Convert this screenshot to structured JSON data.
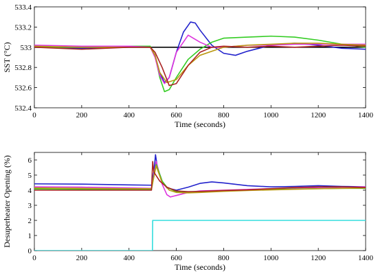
{
  "chart_data": [
    {
      "type": "line",
      "xlabel": "Time (seconds)",
      "ylabel": "SST (°C)",
      "xlim": [
        0,
        1400
      ],
      "ylim": [
        532.4,
        533.4
      ],
      "xticks": [
        "0",
        "200",
        "400",
        "600",
        "800",
        "1000",
        "1200",
        "1400"
      ],
      "yticks": [
        "532.4",
        "532.6",
        "532.8",
        "533",
        "533.2",
        "533.4"
      ],
      "grid": false,
      "series": [
        {
          "color": "#000000",
          "x": [
            0,
            1400
          ],
          "y": [
            533.0,
            533.0
          ]
        },
        {
          "color": "#2222cc",
          "x": [
            0,
            200,
            400,
            490,
            510,
            530,
            550,
            570,
            600,
            630,
            660,
            680,
            700,
            750,
            800,
            850,
            900,
            1000,
            1100,
            1200,
            1300,
            1400
          ],
          "y": [
            533.0,
            532.99,
            533.0,
            533.0,
            532.92,
            532.75,
            532.65,
            532.7,
            532.95,
            533.15,
            533.25,
            533.24,
            533.17,
            533.02,
            532.94,
            532.92,
            532.96,
            533.02,
            533.04,
            533.02,
            532.99,
            532.98
          ]
        },
        {
          "color": "#33cc22",
          "x": [
            0,
            200,
            400,
            490,
            510,
            530,
            550,
            570,
            600,
            650,
            700,
            750,
            800,
            900,
            1000,
            1100,
            1200,
            1300,
            1400
          ],
          "y": [
            533.0,
            533.0,
            533.01,
            533.01,
            532.92,
            532.7,
            532.56,
            532.58,
            532.7,
            532.88,
            532.98,
            533.05,
            533.09,
            533.1,
            533.11,
            533.1,
            533.07,
            533.03,
            533.0
          ]
        },
        {
          "color": "#dd33dd",
          "x": [
            0,
            200,
            400,
            490,
            510,
            530,
            550,
            570,
            600,
            650,
            700,
            750,
            800,
            900,
            1000,
            1100,
            1200,
            1300,
            1400
          ],
          "y": [
            533.02,
            533.01,
            533.01,
            533.0,
            532.9,
            532.72,
            532.64,
            532.7,
            532.95,
            533.12,
            533.05,
            533.0,
            533.0,
            533.02,
            533.02,
            533.03,
            533.03,
            533.03,
            533.03
          ]
        },
        {
          "color": "#bb9911",
          "x": [
            0,
            200,
            400,
            490,
            510,
            530,
            560,
            600,
            650,
            700,
            800,
            900,
            1000,
            1100,
            1200,
            1300,
            1400
          ],
          "y": [
            533.01,
            533.0,
            533.0,
            533.0,
            532.92,
            532.75,
            532.65,
            532.68,
            532.82,
            532.92,
            533.0,
            533.02,
            533.03,
            533.04,
            533.04,
            533.03,
            533.02
          ]
        },
        {
          "color": "#aa2222",
          "x": [
            0,
            200,
            400,
            490,
            510,
            540,
            570,
            600,
            650,
            700,
            750,
            800,
            900,
            1000,
            1100,
            1200,
            1300,
            1400
          ],
          "y": [
            533.0,
            532.98,
            533.0,
            533.0,
            532.95,
            532.8,
            532.62,
            532.64,
            532.82,
            532.95,
            533.0,
            533.01,
            533.0,
            533.01,
            533.0,
            533.01,
            533.02,
            533.01
          ]
        }
      ]
    },
    {
      "type": "line",
      "xlabel": "Time (seconds)",
      "ylabel": "Desuperheater Opening (%)",
      "xlim": [
        0,
        1400
      ],
      "ylim": [
        0,
        6.5
      ],
      "xticks": [
        "0",
        "200",
        "400",
        "600",
        "800",
        "1000",
        "1200",
        "1400"
      ],
      "yticks": [
        "0",
        "1",
        "2",
        "3",
        "4",
        "5",
        "6"
      ],
      "grid": false,
      "series": [
        {
          "color": "#33dddd",
          "x": [
            0,
            499,
            500,
            1400
          ],
          "y": [
            0.0,
            0.0,
            2.0,
            2.0
          ]
        },
        {
          "color": "#2222cc",
          "x": [
            0,
            200,
            400,
            495,
            505,
            512,
            520,
            540,
            560,
            600,
            650,
            700,
            750,
            800,
            900,
            1000,
            1100,
            1200,
            1300,
            1400
          ],
          "y": [
            4.42,
            4.4,
            4.35,
            4.33,
            5.2,
            6.35,
            5.5,
            4.6,
            4.15,
            4.0,
            4.2,
            4.45,
            4.55,
            4.48,
            4.3,
            4.22,
            4.25,
            4.3,
            4.25,
            4.22
          ]
        },
        {
          "color": "#dd33dd",
          "x": [
            0,
            200,
            400,
            495,
            505,
            515,
            540,
            560,
            575,
            600,
            650,
            700,
            800,
            900,
            1000,
            1100,
            1200,
            1300,
            1400
          ],
          "y": [
            4.22,
            4.2,
            4.15,
            4.12,
            5.0,
            5.9,
            4.4,
            3.7,
            3.55,
            3.65,
            3.85,
            3.95,
            4.0,
            4.05,
            4.1,
            4.15,
            4.18,
            4.2,
            4.22
          ]
        },
        {
          "color": "#33cc22",
          "x": [
            0,
            200,
            400,
            495,
            505,
            515,
            540,
            560,
            600,
            650,
            700,
            800,
            900,
            1000,
            1100,
            1200,
            1300,
            1400
          ],
          "y": [
            4.08,
            4.06,
            4.05,
            4.05,
            4.9,
            5.7,
            4.6,
            4.2,
            3.9,
            3.85,
            3.88,
            3.95,
            4.0,
            4.05,
            4.08,
            4.1,
            4.12,
            4.12
          ]
        },
        {
          "color": "#bb9911",
          "x": [
            0,
            200,
            400,
            495,
            505,
            515,
            540,
            570,
            600,
            650,
            700,
            800,
            900,
            1000,
            1100,
            1200,
            1300,
            1400
          ],
          "y": [
            4.15,
            4.12,
            4.1,
            4.1,
            4.9,
            5.6,
            4.5,
            4.0,
            3.85,
            3.82,
            3.85,
            3.92,
            3.98,
            4.02,
            4.06,
            4.1,
            4.12,
            4.15
          ]
        },
        {
          "color": "#aa2222",
          "x": [
            0,
            200,
            400,
            495,
            500,
            505,
            530,
            560,
            600,
            650,
            700,
            800,
            900,
            1000,
            1100,
            1200,
            1300,
            1400
          ],
          "y": [
            4.0,
            4.0,
            4.0,
            4.0,
            5.9,
            5.2,
            4.6,
            4.2,
            3.95,
            3.9,
            3.92,
            3.98,
            4.02,
            4.1,
            4.18,
            4.22,
            4.22,
            4.18
          ]
        }
      ]
    }
  ]
}
